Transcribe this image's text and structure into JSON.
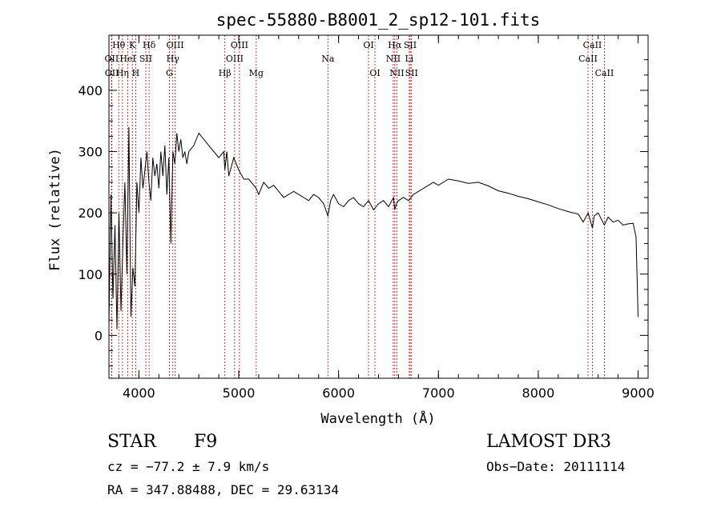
{
  "chart_data": {
    "type": "line",
    "title": "spec-55880-B8001_2_sp12-101.fits",
    "xlabel": "Wavelength (Å)",
    "ylabel": "Flux (relative)",
    "xlim": [
      3700,
      9100
    ],
    "ylim": [
      -70,
      490
    ],
    "xticks": [
      4000,
      5000,
      6000,
      7000,
      8000,
      9000
    ],
    "yticks": [
      0,
      100,
      200,
      300,
      400
    ],
    "series": [
      {
        "name": "flux",
        "x": [
          3700,
          3720,
          3740,
          3760,
          3780,
          3800,
          3820,
          3840,
          3860,
          3880,
          3900,
          3920,
          3940,
          3960,
          3980,
          4000,
          4020,
          4040,
          4060,
          4080,
          4100,
          4120,
          4140,
          4160,
          4180,
          4200,
          4220,
          4240,
          4260,
          4280,
          4300,
          4320,
          4340,
          4360,
          4380,
          4400,
          4420,
          4440,
          4460,
          4480,
          4500,
          4550,
          4600,
          4650,
          4700,
          4750,
          4800,
          4850,
          4861,
          4880,
          4900,
          4950,
          5000,
          5050,
          5100,
          5150,
          5175,
          5200,
          5250,
          5300,
          5350,
          5400,
          5450,
          5500,
          5550,
          5600,
          5650,
          5700,
          5750,
          5800,
          5850,
          5893,
          5920,
          5950,
          6000,
          6050,
          6100,
          6150,
          6200,
          6250,
          6300,
          6350,
          6400,
          6450,
          6500,
          6550,
          6563,
          6580,
          6600,
          6650,
          6700,
          6750,
          6800,
          6850,
          6900,
          6950,
          7000,
          7100,
          7200,
          7300,
          7400,
          7500,
          7600,
          7700,
          7800,
          7900,
          8000,
          8100,
          8200,
          8300,
          8400,
          8450,
          8500,
          8542,
          8560,
          8600,
          8662,
          8700,
          8750,
          8800,
          8850,
          8900,
          8950,
          8980,
          9000
        ],
        "values": [
          20,
          230,
          60,
          180,
          10,
          200,
          40,
          150,
          250,
          100,
          340,
          30,
          110,
          80,
          250,
          200,
          290,
          240,
          270,
          300,
          250,
          220,
          290,
          260,
          280,
          240,
          300,
          260,
          310,
          230,
          290,
          150,
          300,
          280,
          330,
          300,
          320,
          290,
          300,
          280,
          300,
          310,
          330,
          320,
          310,
          300,
          290,
          300,
          270,
          300,
          260,
          290,
          270,
          255,
          255,
          245,
          240,
          230,
          250,
          240,
          245,
          235,
          225,
          230,
          235,
          230,
          225,
          220,
          230,
          225,
          215,
          195,
          220,
          230,
          215,
          210,
          220,
          225,
          215,
          210,
          220,
          205,
          215,
          220,
          210,
          225,
          205,
          215,
          220,
          225,
          220,
          230,
          235,
          240,
          245,
          250,
          245,
          255,
          252,
          248,
          250,
          244,
          236,
          232,
          227,
          223,
          218,
          213,
          207,
          202,
          198,
          185,
          200,
          175,
          195,
          200,
          180,
          193,
          185,
          188,
          180,
          182,
          183,
          160,
          30
        ]
      }
    ],
    "lines": [
      {
        "label": "Hθ",
        "wavelength": 3798,
        "row": 0
      },
      {
        "label": "K",
        "wavelength": 3934,
        "row": 0
      },
      {
        "label": "Hδ",
        "wavelength": 4102,
        "row": 0
      },
      {
        "label": "OII",
        "wavelength": 3727,
        "row": 1
      },
      {
        "label": "HeI",
        "wavelength": 3889,
        "row": 1
      },
      {
        "label": "SII",
        "wavelength": 4069,
        "row": 1
      },
      {
        "label": "OII",
        "wavelength": 3729,
        "row": 2
      },
      {
        "label": "Hη",
        "wavelength": 3835,
        "row": 2
      },
      {
        "label": "H",
        "wavelength": 3968,
        "row": 2
      },
      {
        "label": "OIII",
        "wavelength": 4363,
        "row": 0
      },
      {
        "label": "Hγ",
        "wavelength": 4340,
        "row": 1
      },
      {
        "label": "G",
        "wavelength": 4305,
        "row": 2
      },
      {
        "label": "Hβ",
        "wavelength": 4861,
        "row": 2
      },
      {
        "label": "OIII",
        "wavelength": 5007,
        "row": 0
      },
      {
        "label": "OIII",
        "wavelength": 4959,
        "row": 1
      },
      {
        "label": "Mg",
        "wavelength": 5175,
        "row": 2
      },
      {
        "label": "Na",
        "wavelength": 5893,
        "row": 1
      },
      {
        "label": "OI",
        "wavelength": 6300,
        "row": 0
      },
      {
        "label": "OI",
        "wavelength": 6364,
        "row": 2
      },
      {
        "label": "Hα",
        "wavelength": 6563,
        "row": 0
      },
      {
        "label": "NII",
        "wavelength": 6548,
        "row": 1
      },
      {
        "label": "NII",
        "wavelength": 6584,
        "row": 2
      },
      {
        "label": "SII",
        "wavelength": 6717,
        "row": 0
      },
      {
        "label": "Li",
        "wavelength": 6708,
        "row": 1
      },
      {
        "label": "SII",
        "wavelength": 6731,
        "row": 2
      },
      {
        "label": "CaII",
        "wavelength": 8542,
        "row": 0
      },
      {
        "label": "CaII",
        "wavelength": 8498,
        "row": 1
      },
      {
        "label": "CaII",
        "wavelength": 8662,
        "row": 2
      }
    ]
  },
  "info": {
    "class": "STAR",
    "subclass": "F9",
    "survey": "LAMOST DR3",
    "cz": "cz = −77.2 ± 7.9 km/s",
    "obs_date": "Obs−Date: 20111114",
    "coords": "RA = 347.88488, DEC =  29.63134"
  }
}
